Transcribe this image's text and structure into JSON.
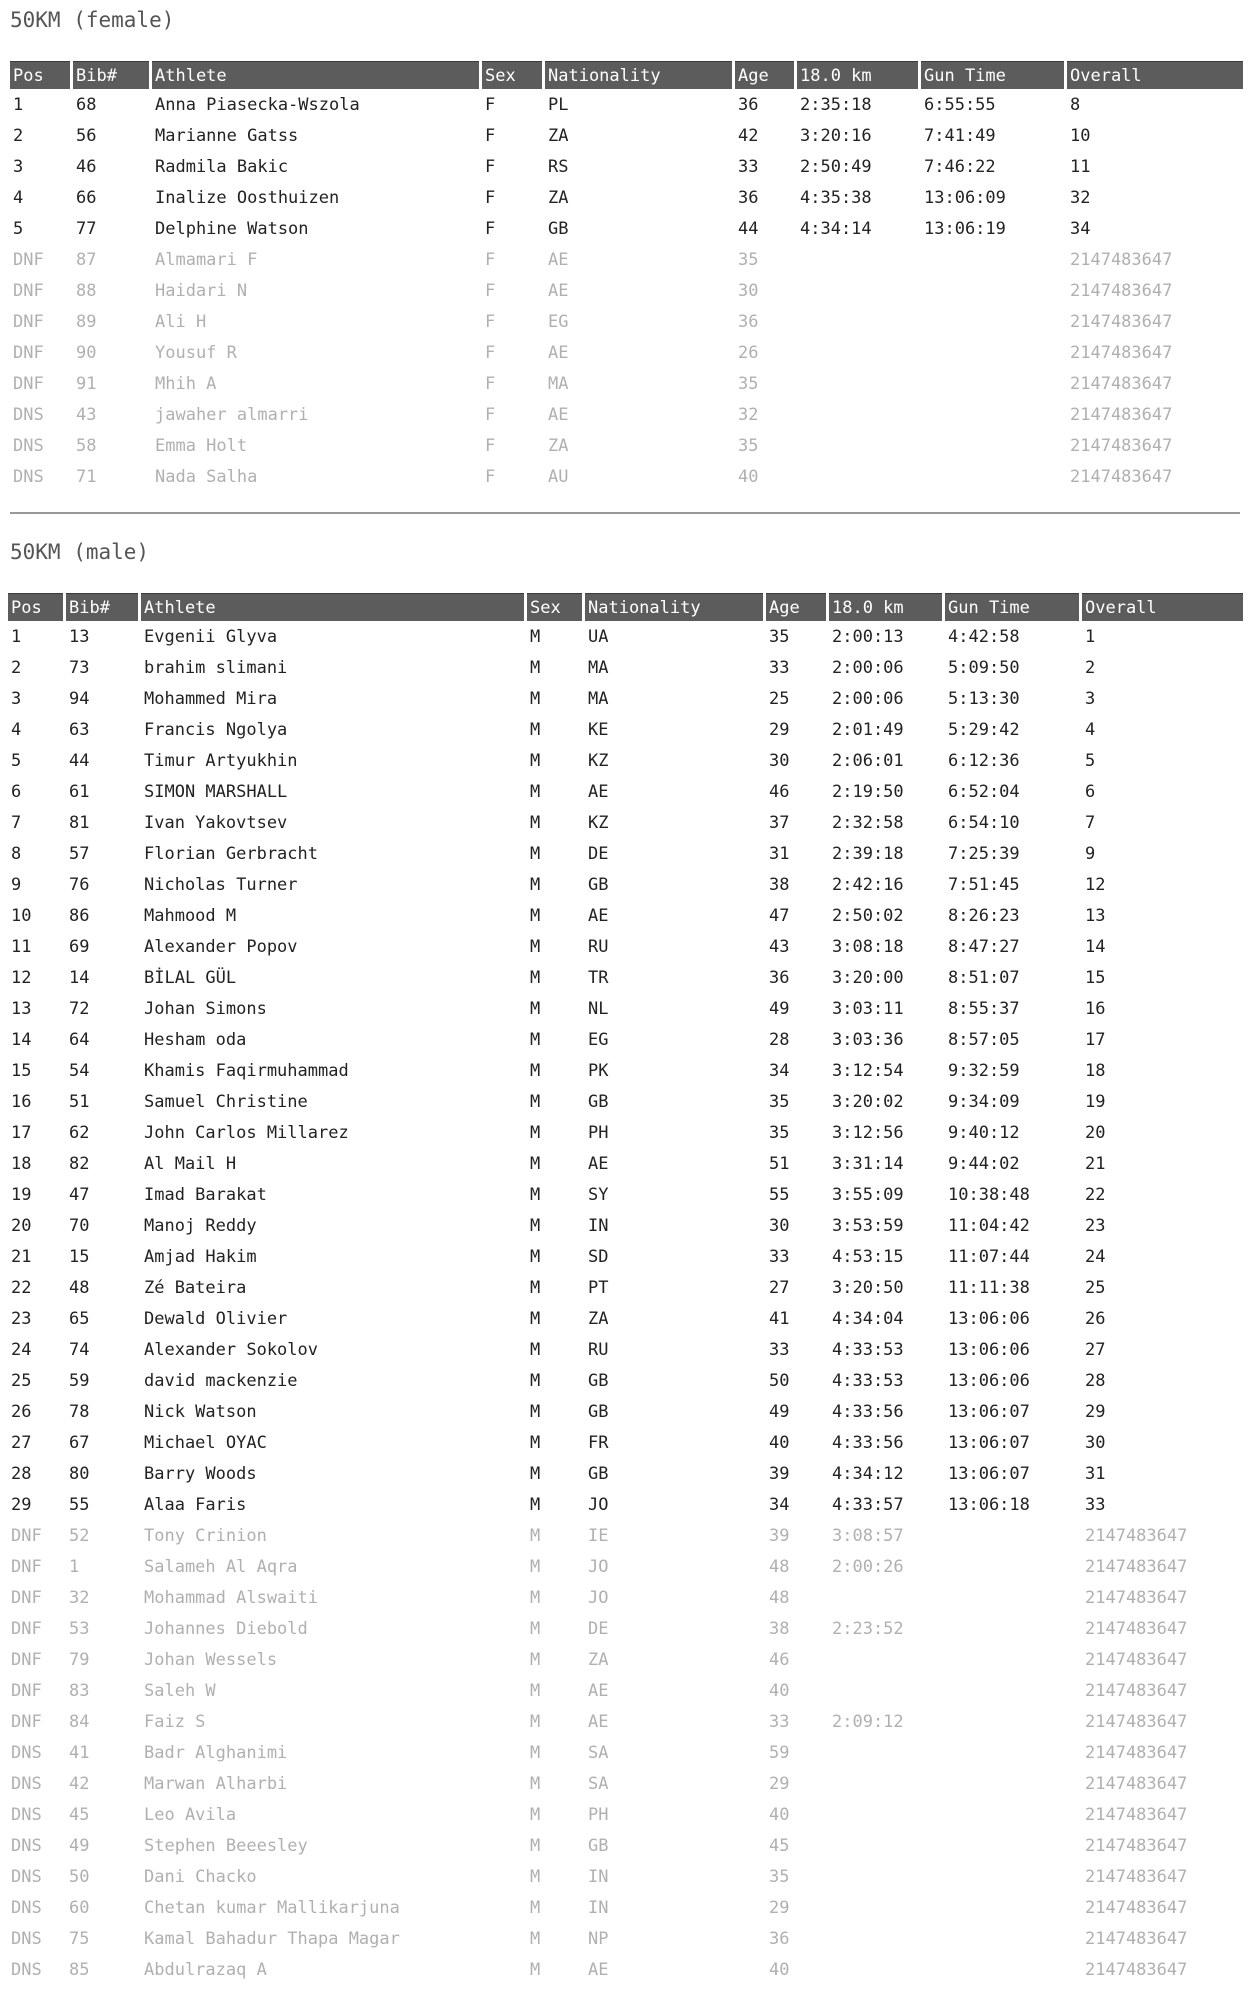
{
  "female": {
    "title": "50KM (female)",
    "headers": [
      "Pos",
      "Bib#",
      "Athlete",
      "Sex",
      "Nationality",
      "Age",
      "18.0 km",
      "Gun Time",
      "Overall"
    ],
    "rows": [
      [
        "1",
        "68",
        "Anna Piasecka-Wszola",
        "F",
        "PL",
        "36",
        "2:35:18",
        "6:55:55",
        "8"
      ],
      [
        "2",
        "56",
        "Marianne Gatss",
        "F",
        "ZA",
        "42",
        "3:20:16",
        "7:41:49",
        "10"
      ],
      [
        "3",
        "46",
        "Radmila Bakic",
        "F",
        "RS",
        "33",
        "2:50:49",
        "7:46:22",
        "11"
      ],
      [
        "4",
        "66",
        "Inalize Oosthuizen",
        "F",
        "ZA",
        "36",
        "4:35:38",
        "13:06:09",
        "32"
      ],
      [
        "5",
        "77",
        "Delphine Watson",
        "F",
        "GB",
        "44",
        "4:34:14",
        "13:06:19",
        "34"
      ],
      [
        "DNF",
        "87",
        "Almamari F",
        "F",
        "AE",
        "35",
        "",
        "",
        "2147483647"
      ],
      [
        "DNF",
        "88",
        "Haidari N",
        "F",
        "AE",
        "30",
        "",
        "",
        "2147483647"
      ],
      [
        "DNF",
        "89",
        "Ali H",
        "F",
        "EG",
        "36",
        "",
        "",
        "2147483647"
      ],
      [
        "DNF",
        "90",
        "Yousuf R",
        "F",
        "AE",
        "26",
        "",
        "",
        "2147483647"
      ],
      [
        "DNF",
        "91",
        "Mhih A",
        "F",
        "MA",
        "35",
        "",
        "",
        "2147483647"
      ],
      [
        "DNS",
        "43",
        "jawaher almarri",
        "F",
        "AE",
        "32",
        "",
        "",
        "2147483647"
      ],
      [
        "DNS",
        "58",
        "Emma Holt",
        "F",
        "ZA",
        "35",
        "",
        "",
        "2147483647"
      ],
      [
        "DNS",
        "71",
        "Nada Salha",
        "F",
        "AU",
        "40",
        "",
        "",
        "2147483647"
      ]
    ]
  },
  "male": {
    "title": "50KM (male)",
    "headers": [
      "Pos",
      "Bib#",
      "Athlete",
      "Sex",
      "Nationality",
      "Age",
      "18.0 km",
      "Gun Time",
      "Overall"
    ],
    "rows": [
      [
        "1",
        "13",
        "Evgenii Glyva",
        "M",
        "UA",
        "35",
        "2:00:13",
        "4:42:58",
        "1"
      ],
      [
        "2",
        "73",
        "brahim slimani",
        "M",
        "MA",
        "33",
        "2:00:06",
        "5:09:50",
        "2"
      ],
      [
        "3",
        "94",
        "Mohammed Mira",
        "M",
        "MA",
        "25",
        "2:00:06",
        "5:13:30",
        "3"
      ],
      [
        "4",
        "63",
        "Francis Ngolya",
        "M",
        "KE",
        "29",
        "2:01:49",
        "5:29:42",
        "4"
      ],
      [
        "5",
        "44",
        "Timur Artyukhin",
        "M",
        "KZ",
        "30",
        "2:06:01",
        "6:12:36",
        "5"
      ],
      [
        "6",
        "61",
        "SIMON MARSHALL",
        "M",
        "AE",
        "46",
        "2:19:50",
        "6:52:04",
        "6"
      ],
      [
        "7",
        "81",
        "Ivan Yakovtsev",
        "M",
        "KZ",
        "37",
        "2:32:58",
        "6:54:10",
        "7"
      ],
      [
        "8",
        "57",
        "Florian Gerbracht",
        "M",
        "DE",
        "31",
        "2:39:18",
        "7:25:39",
        "9"
      ],
      [
        "9",
        "76",
        "Nicholas Turner",
        "M",
        "GB",
        "38",
        "2:42:16",
        "7:51:45",
        "12"
      ],
      [
        "10",
        "86",
        "Mahmood M",
        "M",
        "AE",
        "47",
        "2:50:02",
        "8:26:23",
        "13"
      ],
      [
        "11",
        "69",
        "Alexander Popov",
        "M",
        "RU",
        "43",
        "3:08:18",
        "8:47:27",
        "14"
      ],
      [
        "12",
        "14",
        "BİLAL GÜL",
        "M",
        "TR",
        "36",
        "3:20:00",
        "8:51:07",
        "15"
      ],
      [
        "13",
        "72",
        "Johan Simons",
        "M",
        "NL",
        "49",
        "3:03:11",
        "8:55:37",
        "16"
      ],
      [
        "14",
        "64",
        "Hesham oda",
        "M",
        "EG",
        "28",
        "3:03:36",
        "8:57:05",
        "17"
      ],
      [
        "15",
        "54",
        "Khamis Faqirmuhammad",
        "M",
        "PK",
        "34",
        "3:12:54",
        "9:32:59",
        "18"
      ],
      [
        "16",
        "51",
        "Samuel Christine",
        "M",
        "GB",
        "35",
        "3:20:02",
        "9:34:09",
        "19"
      ],
      [
        "17",
        "62",
        "John Carlos Millarez",
        "M",
        "PH",
        "35",
        "3:12:56",
        "9:40:12",
        "20"
      ],
      [
        "18",
        "82",
        "Al Mail H",
        "M",
        "AE",
        "51",
        "3:31:14",
        "9:44:02",
        "21"
      ],
      [
        "19",
        "47",
        "Imad Barakat",
        "M",
        "SY",
        "55",
        "3:55:09",
        "10:38:48",
        "22"
      ],
      [
        "20",
        "70",
        "Manoj Reddy",
        "M",
        "IN",
        "30",
        "3:53:59",
        "11:04:42",
        "23"
      ],
      [
        "21",
        "15",
        "Amjad Hakim",
        "M",
        "SD",
        "33",
        "4:53:15",
        "11:07:44",
        "24"
      ],
      [
        "22",
        "48",
        "Zé Bateira",
        "M",
        "PT",
        "27",
        "3:20:50",
        "11:11:38",
        "25"
      ],
      [
        "23",
        "65",
        "Dewald Olivier",
        "M",
        "ZA",
        "41",
        "4:34:04",
        "13:06:06",
        "26"
      ],
      [
        "24",
        "74",
        "Alexander Sokolov",
        "M",
        "RU",
        "33",
        "4:33:53",
        "13:06:06",
        "27"
      ],
      [
        "25",
        "59",
        "david mackenzie",
        "M",
        "GB",
        "50",
        "4:33:53",
        "13:06:06",
        "28"
      ],
      [
        "26",
        "78",
        "Nick Watson",
        "M",
        "GB",
        "49",
        "4:33:56",
        "13:06:07",
        "29"
      ],
      [
        "27",
        "67",
        "Michael OYAC",
        "M",
        "FR",
        "40",
        "4:33:56",
        "13:06:07",
        "30"
      ],
      [
        "28",
        "80",
        "Barry Woods",
        "M",
        "GB",
        "39",
        "4:34:12",
        "13:06:07",
        "31"
      ],
      [
        "29",
        "55",
        "Alaa Faris",
        "M",
        "JO",
        "34",
        "4:33:57",
        "13:06:18",
        "33"
      ],
      [
        "DNF",
        "52",
        "Tony Crinion",
        "M",
        "IE",
        "39",
        "3:08:57",
        "",
        "2147483647"
      ],
      [
        "DNF",
        "1",
        "Salameh Al Aqra",
        "M",
        "JO",
        "48",
        "2:00:26",
        "",
        "2147483647"
      ],
      [
        "DNF",
        "32",
        "Mohammad Alswaiti",
        "M",
        "JO",
        "48",
        "",
        "",
        "2147483647"
      ],
      [
        "DNF",
        "53",
        "Johannes Diebold",
        "M",
        "DE",
        "38",
        "2:23:52",
        "",
        "2147483647"
      ],
      [
        "DNF",
        "79",
        "Johan Wessels",
        "M",
        "ZA",
        "46",
        "",
        "",
        "2147483647"
      ],
      [
        "DNF",
        "83",
        "Saleh W",
        "M",
        "AE",
        "40",
        "",
        "",
        "2147483647"
      ],
      [
        "DNF",
        "84",
        "Faiz S",
        "M",
        "AE",
        "33",
        "2:09:12",
        "",
        "2147483647"
      ],
      [
        "DNS",
        "41",
        "Badr Alghanimi",
        "M",
        "SA",
        "59",
        "",
        "",
        "2147483647"
      ],
      [
        "DNS",
        "42",
        "Marwan Alharbi",
        "M",
        "SA",
        "29",
        "",
        "",
        "2147483647"
      ],
      [
        "DNS",
        "45",
        "Leo Avila",
        "M",
        "PH",
        "40",
        "",
        "",
        "2147483647"
      ],
      [
        "DNS",
        "49",
        "Stephen Beeesley",
        "M",
        "GB",
        "45",
        "",
        "",
        "2147483647"
      ],
      [
        "DNS",
        "50",
        "Dani Chacko",
        "M",
        "IN",
        "35",
        "",
        "",
        "2147483647"
      ],
      [
        "DNS",
        "60",
        "Chetan kumar Mallikarjuna",
        "M",
        "IN",
        "29",
        "",
        "",
        "2147483647"
      ],
      [
        "DNS",
        "75",
        "Kamal Bahadur Thapa Magar",
        "M",
        "NP",
        "36",
        "",
        "",
        "2147483647"
      ],
      [
        "DNS",
        "85",
        "Abdulrazaq A",
        "M",
        "AE",
        "40",
        "",
        "",
        "2147483647"
      ]
    ]
  }
}
